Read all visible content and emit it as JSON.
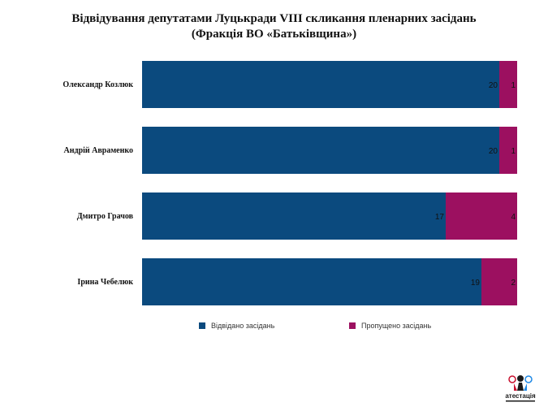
{
  "title": {
    "line1": "Відвідування депутатами Луцькради VIII скликання пленарних засідань",
    "line2": "(Фракція ВО «Батьківщина»)"
  },
  "colors": {
    "attended": "#0b4a7e",
    "missed": "#9c1060"
  },
  "chart_data": {
    "type": "bar",
    "orientation": "horizontal",
    "stacked": true,
    "categories": [
      "Олександр Козлюк",
      "Андрій Авраменко",
      "Дмитро Грачов",
      "Ірина Чебелюк"
    ],
    "series": [
      {
        "name": "Відвідано засідань",
        "values": [
          20,
          20,
          17,
          19
        ]
      },
      {
        "name": "Пропущено засідань",
        "values": [
          1,
          1,
          4,
          2
        ]
      }
    ],
    "xlim": [
      0,
      21
    ],
    "grid": false,
    "legend": "bottom"
  },
  "logo": {
    "text": "атестація",
    "icon": "atestatsiia-logo-icon"
  }
}
